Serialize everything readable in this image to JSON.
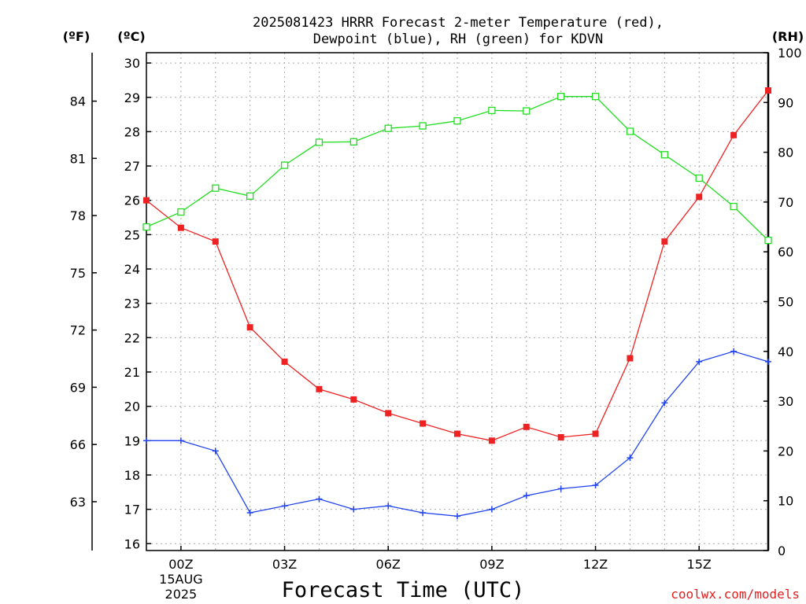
{
  "chart_data": {
    "type": "line",
    "title_lines": [
      "2025081423 HRRR Forecast 2-meter Temperature (red),",
      "Dewpoint (blue), RH (green) for KDVN"
    ],
    "xlabel": "Forecast Time (UTC)",
    "credit": "coolwx.com/models",
    "units": {
      "f": "(ºF)",
      "c": "(ºC)",
      "rh": "(RH)"
    },
    "x_hours": [
      -1,
      0,
      1,
      2,
      3,
      4,
      5,
      6,
      7,
      8,
      9,
      10,
      11,
      12,
      13,
      14,
      15,
      16,
      17
    ],
    "x_range_hours": [
      -1,
      17
    ],
    "x_ticks": [
      {
        "hour": 0,
        "label": "00Z",
        "sub": [
          "15AUG",
          "2025"
        ]
      },
      {
        "hour": 3,
        "label": "03Z"
      },
      {
        "hour": 6,
        "label": "06Z"
      },
      {
        "hour": 9,
        "label": "09Z"
      },
      {
        "hour": 12,
        "label": "12Z"
      },
      {
        "hour": 15,
        "label": "15Z"
      }
    ],
    "y_celsius": {
      "range": [
        15.8,
        30.3
      ],
      "ticks": [
        16,
        17,
        18,
        19,
        20,
        21,
        22,
        23,
        24,
        25,
        26,
        27,
        28,
        29,
        30
      ]
    },
    "y_fahrenheit_ticks": [
      63,
      66,
      69,
      72,
      75,
      78,
      81,
      84
    ],
    "y_rh": {
      "range": [
        0,
        100
      ],
      "ticks": [
        0,
        10,
        20,
        30,
        40,
        50,
        60,
        70,
        80,
        90,
        100
      ]
    },
    "grid": true,
    "series": [
      {
        "name": "Temperature",
        "axis": "celsius",
        "color": "#ee2222",
        "marker": "filled-square",
        "values": [
          26.0,
          25.2,
          24.8,
          22.3,
          21.3,
          20.5,
          20.2,
          19.8,
          19.5,
          19.2,
          19.0,
          19.4,
          19.1,
          19.2,
          21.4,
          24.8,
          26.1,
          27.9,
          29.2
        ]
      },
      {
        "name": "Dewpoint",
        "axis": "celsius",
        "color": "#2244ee",
        "marker": "plus",
        "values": [
          19.0,
          19.0,
          18.7,
          16.9,
          17.1,
          17.3,
          17.0,
          17.1,
          16.9,
          16.8,
          17.0,
          17.4,
          17.6,
          17.7,
          18.5,
          20.1,
          21.3,
          21.6,
          21.3
        ]
      },
      {
        "name": "RH",
        "axis": "rh",
        "color": "#22dd22",
        "marker": "open-square",
        "values": [
          65.0,
          68.0,
          72.8,
          71.2,
          77.4,
          82.0,
          82.1,
          84.8,
          85.3,
          86.3,
          88.4,
          88.3,
          91.2,
          91.2,
          84.2,
          79.5,
          74.8,
          69.1,
          62.3
        ]
      }
    ]
  }
}
